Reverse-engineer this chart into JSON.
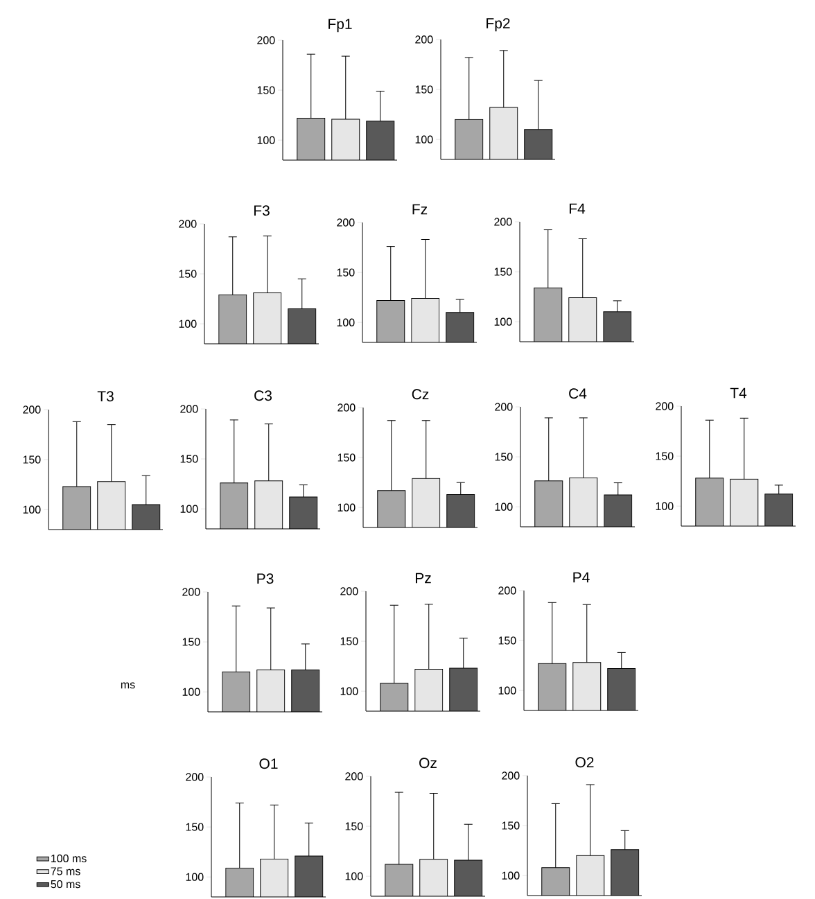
{
  "chart_data": [
    {
      "type": "bar",
      "title": "Fp1",
      "categories": [
        null
      ],
      "ylim": [
        80,
        200
      ],
      "yticks": [
        100,
        150,
        200
      ],
      "tick_labels": "y",
      "series": [
        {
          "color": "#a6a6a6",
          "values": [
            122
          ],
          "errors": [
            [
              122,
              186
            ]
          ]
        },
        {
          "color": "#e6e6e6",
          "values": [
            121
          ],
          "errors": [
            [
              121,
              184
            ]
          ]
        },
        {
          "color": "#595959",
          "values": [
            119
          ],
          "errors": [
            [
              119,
              149
            ]
          ]
        }
      ]
    },
    {
      "type": "bar",
      "title": "Fp2",
      "categories": [
        null
      ],
      "ylim": [
        80,
        200
      ],
      "yticks": [
        100,
        150,
        200
      ],
      "tick_labels": "y",
      "series": [
        {
          "color": "#a6a6a6",
          "values": [
            120
          ],
          "errors": [
            [
              120,
              182
            ]
          ]
        },
        {
          "color": "#e6e6e6",
          "values": [
            132
          ],
          "errors": [
            [
              132,
              189
            ]
          ]
        },
        {
          "color": "#595959",
          "values": [
            110
          ],
          "errors": [
            [
              110,
              159
            ]
          ]
        }
      ]
    },
    {
      "type": "bar",
      "title": "F3",
      "categories": [
        null
      ],
      "ylim": [
        80,
        200
      ],
      "yticks": [
        100,
        150,
        200
      ],
      "tick_labels": "y",
      "series": [
        {
          "color": "#a6a6a6",
          "values": [
            129
          ],
          "errors": [
            [
              129,
              187
            ]
          ]
        },
        {
          "color": "#e6e6e6",
          "values": [
            131
          ],
          "errors": [
            [
              131,
              188
            ]
          ]
        },
        {
          "color": "#595959",
          "values": [
            115
          ],
          "errors": [
            [
              115,
              145
            ]
          ]
        }
      ]
    },
    {
      "type": "bar",
      "title": "Fz",
      "categories": [
        null
      ],
      "ylim": [
        80,
        200
      ],
      "yticks": [
        100,
        150,
        200
      ],
      "tick_labels": "y",
      "series": [
        {
          "color": "#a6a6a6",
          "values": [
            122
          ],
          "errors": [
            [
              122,
              176
            ]
          ]
        },
        {
          "color": "#e6e6e6",
          "values": [
            124
          ],
          "errors": [
            [
              124,
              183
            ]
          ]
        },
        {
          "color": "#595959",
          "values": [
            110
          ],
          "errors": [
            [
              110,
              123
            ]
          ]
        }
      ]
    },
    {
      "type": "bar",
      "title": "F4",
      "categories": [
        null
      ],
      "ylim": [
        80,
        200
      ],
      "yticks": [
        100,
        150,
        200
      ],
      "tick_labels": "y",
      "series": [
        {
          "color": "#a6a6a6",
          "values": [
            134
          ],
          "errors": [
            [
              134,
              192
            ]
          ]
        },
        {
          "color": "#e6e6e6",
          "values": [
            124
          ],
          "errors": [
            [
              124,
              183
            ]
          ]
        },
        {
          "color": "#595959",
          "values": [
            110
          ],
          "errors": [
            [
              110,
              121
            ]
          ]
        }
      ]
    },
    {
      "type": "bar",
      "title": "T3",
      "categories": [
        null
      ],
      "ylim": [
        80,
        200
      ],
      "yticks": [
        100,
        150,
        200
      ],
      "tick_labels": "y",
      "series": [
        {
          "color": "#a6a6a6",
          "values": [
            123
          ],
          "errors": [
            [
              123,
              188
            ]
          ]
        },
        {
          "color": "#e6e6e6",
          "values": [
            128
          ],
          "errors": [
            [
              128,
              185
            ]
          ]
        },
        {
          "color": "#595959",
          "values": [
            105
          ],
          "errors": [
            [
              105,
              134
            ]
          ]
        }
      ]
    },
    {
      "type": "bar",
      "title": "C3",
      "categories": [
        null
      ],
      "ylim": [
        80,
        200
      ],
      "yticks": [
        100,
        150,
        200
      ],
      "tick_labels": "y",
      "series": [
        {
          "color": "#a6a6a6",
          "values": [
            126
          ],
          "errors": [
            [
              126,
              189
            ]
          ]
        },
        {
          "color": "#e6e6e6",
          "values": [
            128
          ],
          "errors": [
            [
              128,
              185
            ]
          ]
        },
        {
          "color": "#595959",
          "values": [
            112
          ],
          "errors": [
            [
              112,
              124
            ]
          ]
        }
      ]
    },
    {
      "type": "bar",
      "title": "Cz",
      "categories": [
        null
      ],
      "ylim": [
        80,
        200
      ],
      "yticks": [
        100,
        150,
        200
      ],
      "tick_labels": "y",
      "series": [
        {
          "color": "#a6a6a6",
          "values": [
            117
          ],
          "errors": [
            [
              117,
              187
            ]
          ]
        },
        {
          "color": "#e6e6e6",
          "values": [
            129
          ],
          "errors": [
            [
              129,
              187
            ]
          ]
        },
        {
          "color": "#595959",
          "values": [
            113
          ],
          "errors": [
            [
              113,
              125
            ]
          ]
        }
      ]
    },
    {
      "type": "bar",
      "title": "C4",
      "categories": [
        null
      ],
      "ylim": [
        80,
        200
      ],
      "yticks": [
        100,
        150,
        200
      ],
      "tick_labels": "y",
      "series": [
        {
          "color": "#a6a6a6",
          "values": [
            126
          ],
          "errors": [
            [
              126,
              189
            ]
          ]
        },
        {
          "color": "#e6e6e6",
          "values": [
            129
          ],
          "errors": [
            [
              129,
              189
            ]
          ]
        },
        {
          "color": "#595959",
          "values": [
            112
          ],
          "errors": [
            [
              112,
              124
            ]
          ]
        }
      ]
    },
    {
      "type": "bar",
      "title": "T4",
      "categories": [
        null
      ],
      "ylim": [
        80,
        200
      ],
      "yticks": [
        100,
        150,
        200
      ],
      "tick_labels": "y",
      "series": [
        {
          "color": "#a6a6a6",
          "values": [
            128
          ],
          "errors": [
            [
              128,
              186
            ]
          ]
        },
        {
          "color": "#e6e6e6",
          "values": [
            127
          ],
          "errors": [
            [
              127,
              188
            ]
          ]
        },
        {
          "color": "#595959",
          "values": [
            112
          ],
          "errors": [
            [
              112,
              121
            ]
          ]
        }
      ]
    },
    {
      "type": "bar",
      "title": "P3",
      "ylabel": "ms",
      "categories": [
        null
      ],
      "ylim": [
        80,
        200
      ],
      "yticks": [
        100,
        150,
        200
      ],
      "tick_labels": "y",
      "series": [
        {
          "color": "#a6a6a6",
          "values": [
            120
          ],
          "errors": [
            [
              120,
              186
            ]
          ]
        },
        {
          "color": "#e6e6e6",
          "values": [
            122
          ],
          "errors": [
            [
              122,
              184
            ]
          ]
        },
        {
          "color": "#595959",
          "values": [
            122
          ],
          "errors": [
            [
              122,
              148
            ]
          ]
        }
      ]
    },
    {
      "type": "bar",
      "title": "Pz",
      "categories": [
        null
      ],
      "ylim": [
        80,
        200
      ],
      "yticks": [
        100,
        150,
        200
      ],
      "tick_labels": "y",
      "series": [
        {
          "color": "#a6a6a6",
          "values": [
            108
          ],
          "errors": [
            [
              108,
              186
            ]
          ]
        },
        {
          "color": "#e6e6e6",
          "values": [
            122
          ],
          "errors": [
            [
              122,
              187
            ]
          ]
        },
        {
          "color": "#595959",
          "values": [
            123
          ],
          "errors": [
            [
              123,
              153
            ]
          ]
        }
      ]
    },
    {
      "type": "bar",
      "title": "P4",
      "categories": [
        null
      ],
      "ylim": [
        80,
        200
      ],
      "yticks": [
        100,
        150,
        200
      ],
      "tick_labels": "y",
      "series": [
        {
          "color": "#a6a6a6",
          "values": [
            127
          ],
          "errors": [
            [
              127,
              188
            ]
          ]
        },
        {
          "color": "#e6e6e6",
          "values": [
            128
          ],
          "errors": [
            [
              128,
              186
            ]
          ]
        },
        {
          "color": "#595959",
          "values": [
            122
          ],
          "errors": [
            [
              122,
              138
            ]
          ]
        }
      ]
    },
    {
      "type": "bar",
      "title": "O1",
      "categories": [
        null
      ],
      "ylim": [
        80,
        200
      ],
      "yticks": [
        100,
        150,
        200
      ],
      "tick_labels": "y",
      "legend": "left",
      "series": [
        {
          "name": "100 ms",
          "color": "#a6a6a6",
          "values": [
            109
          ],
          "errors": [
            [
              109,
              174
            ]
          ]
        },
        {
          "name": "75 ms",
          "color": "#e6e6e6",
          "values": [
            118
          ],
          "errors": [
            [
              118,
              172
            ]
          ]
        },
        {
          "name": "50 ms",
          "color": "#595959",
          "values": [
            121
          ],
          "errors": [
            [
              121,
              154
            ]
          ]
        }
      ]
    },
    {
      "type": "bar",
      "title": "Oz",
      "categories": [
        null
      ],
      "ylim": [
        80,
        200
      ],
      "yticks": [
        100,
        150,
        200
      ],
      "tick_labels": "y",
      "series": [
        {
          "color": "#a6a6a6",
          "values": [
            112
          ],
          "errors": [
            [
              112,
              184
            ]
          ]
        },
        {
          "color": "#e6e6e6",
          "values": [
            117
          ],
          "errors": [
            [
              117,
              183
            ]
          ]
        },
        {
          "color": "#595959",
          "values": [
            116
          ],
          "errors": [
            [
              116,
              152
            ]
          ]
        }
      ]
    },
    {
      "type": "bar",
      "title": "O2",
      "categories": [
        null
      ],
      "ylim": [
        80,
        200
      ],
      "yticks": [
        100,
        150,
        200
      ],
      "tick_labels": "y",
      "series": [
        {
          "color": "#a6a6a6",
          "values": [
            108
          ],
          "errors": [
            [
              108,
              172
            ]
          ]
        },
        {
          "color": "#e6e6e6",
          "values": [
            120
          ],
          "errors": [
            [
              120,
              191
            ]
          ]
        },
        {
          "color": "#595959",
          "values": [
            126
          ],
          "errors": [
            [
              126,
              145
            ]
          ]
        }
      ]
    }
  ]
}
